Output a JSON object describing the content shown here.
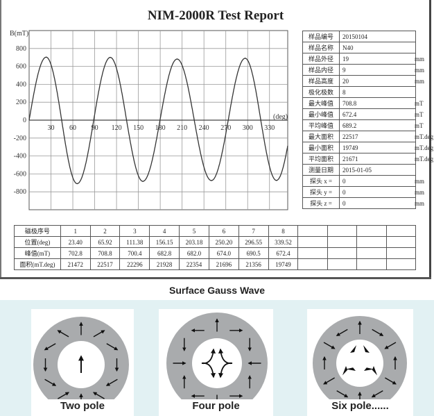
{
  "report": {
    "title": "NIM-2000R Test Report",
    "info_rows": [
      {
        "label": "样品编号",
        "value": "20150104",
        "unit": ""
      },
      {
        "label": "样品名称",
        "value": "N40",
        "unit": ""
      },
      {
        "label": "样品外径",
        "value": "19",
        "unit": "mm"
      },
      {
        "label": "样品内径",
        "value": "9",
        "unit": "mm"
      },
      {
        "label": "样品高度",
        "value": "20",
        "unit": "mm"
      },
      {
        "label": "极化极数",
        "value": "8",
        "unit": ""
      },
      {
        "label": "最大峰值",
        "value": "708.8",
        "unit": "mT"
      },
      {
        "label": "最小峰值",
        "value": "672.4",
        "unit": "mT"
      },
      {
        "label": "平均峰值",
        "value": "689.2",
        "unit": "mT"
      },
      {
        "label": "最大面积",
        "value": "22517",
        "unit": "mT.deg"
      },
      {
        "label": "最小面积",
        "value": "19749",
        "unit": "mT.deg"
      },
      {
        "label": "平均面积",
        "value": "21671",
        "unit": "mT.deg"
      },
      {
        "label": "测量日期",
        "value": "2015-01-05",
        "unit": ""
      },
      {
        "label": "探头 x =",
        "value": "0",
        "unit": "mm"
      },
      {
        "label": "探头 y =",
        "value": "0",
        "unit": "mm"
      },
      {
        "label": "探头 z =",
        "value": "0",
        "unit": "mm"
      }
    ],
    "pole_table": {
      "rows": [
        {
          "label": "磁极序号",
          "cells": [
            "1",
            "2",
            "3",
            "4",
            "5",
            "6",
            "7",
            "8",
            "",
            "",
            "",
            ""
          ]
        },
        {
          "label": "位置(deg)",
          "cells": [
            "23.40",
            "65.92",
            "111.38",
            "156.15",
            "203.18",
            "250.20",
            "296.55",
            "339.52",
            "",
            "",
            "",
            ""
          ]
        },
        {
          "label": "峰值(mT)",
          "cells": [
            "702.8",
            "708.8",
            "700.4",
            "682.8",
            "682.0",
            "674.0",
            "690.5",
            "672.4",
            "",
            "",
            "",
            ""
          ]
        },
        {
          "label": "面积(mT.deg)",
          "cells": [
            "21472",
            "22517",
            "22296",
            "21928",
            "22354",
            "21696",
            "21356",
            "19749",
            "",
            "",
            "",
            ""
          ]
        }
      ]
    }
  },
  "chart_data": {
    "type": "line",
    "title": "",
    "xlabel": "(deg)",
    "ylabel": "B(mT)",
    "xlim": [
      0,
      355
    ],
    "ylim": [
      -1000,
      1000
    ],
    "grid": true,
    "x_ticks": [
      30,
      60,
      90,
      120,
      150,
      180,
      210,
      240,
      270,
      300,
      330
    ],
    "y_ticks": [
      800,
      600,
      400,
      200,
      0,
      -200,
      -400,
      -600,
      -800
    ],
    "series": [
      {
        "peaks_x": [
          23.4,
          65.92,
          111.38,
          156.15,
          203.18,
          250.2,
          296.55,
          339.52
        ],
        "peaks_y": [
          702.8,
          -708.8,
          700.4,
          -682.8,
          682.0,
          -674.0,
          690.5,
          -672.4
        ],
        "color": "#333333"
      }
    ]
  },
  "diagrams": {
    "caption": "Surface Gauss Wave",
    "panels": [
      {
        "label": "Two pole",
        "poles": 2
      },
      {
        "label": "Four pole",
        "poles": 4
      },
      {
        "label": "Six pole......",
        "poles": 6
      }
    ],
    "ring_color": "#a9abad",
    "band_color": "#e2f1f3"
  }
}
